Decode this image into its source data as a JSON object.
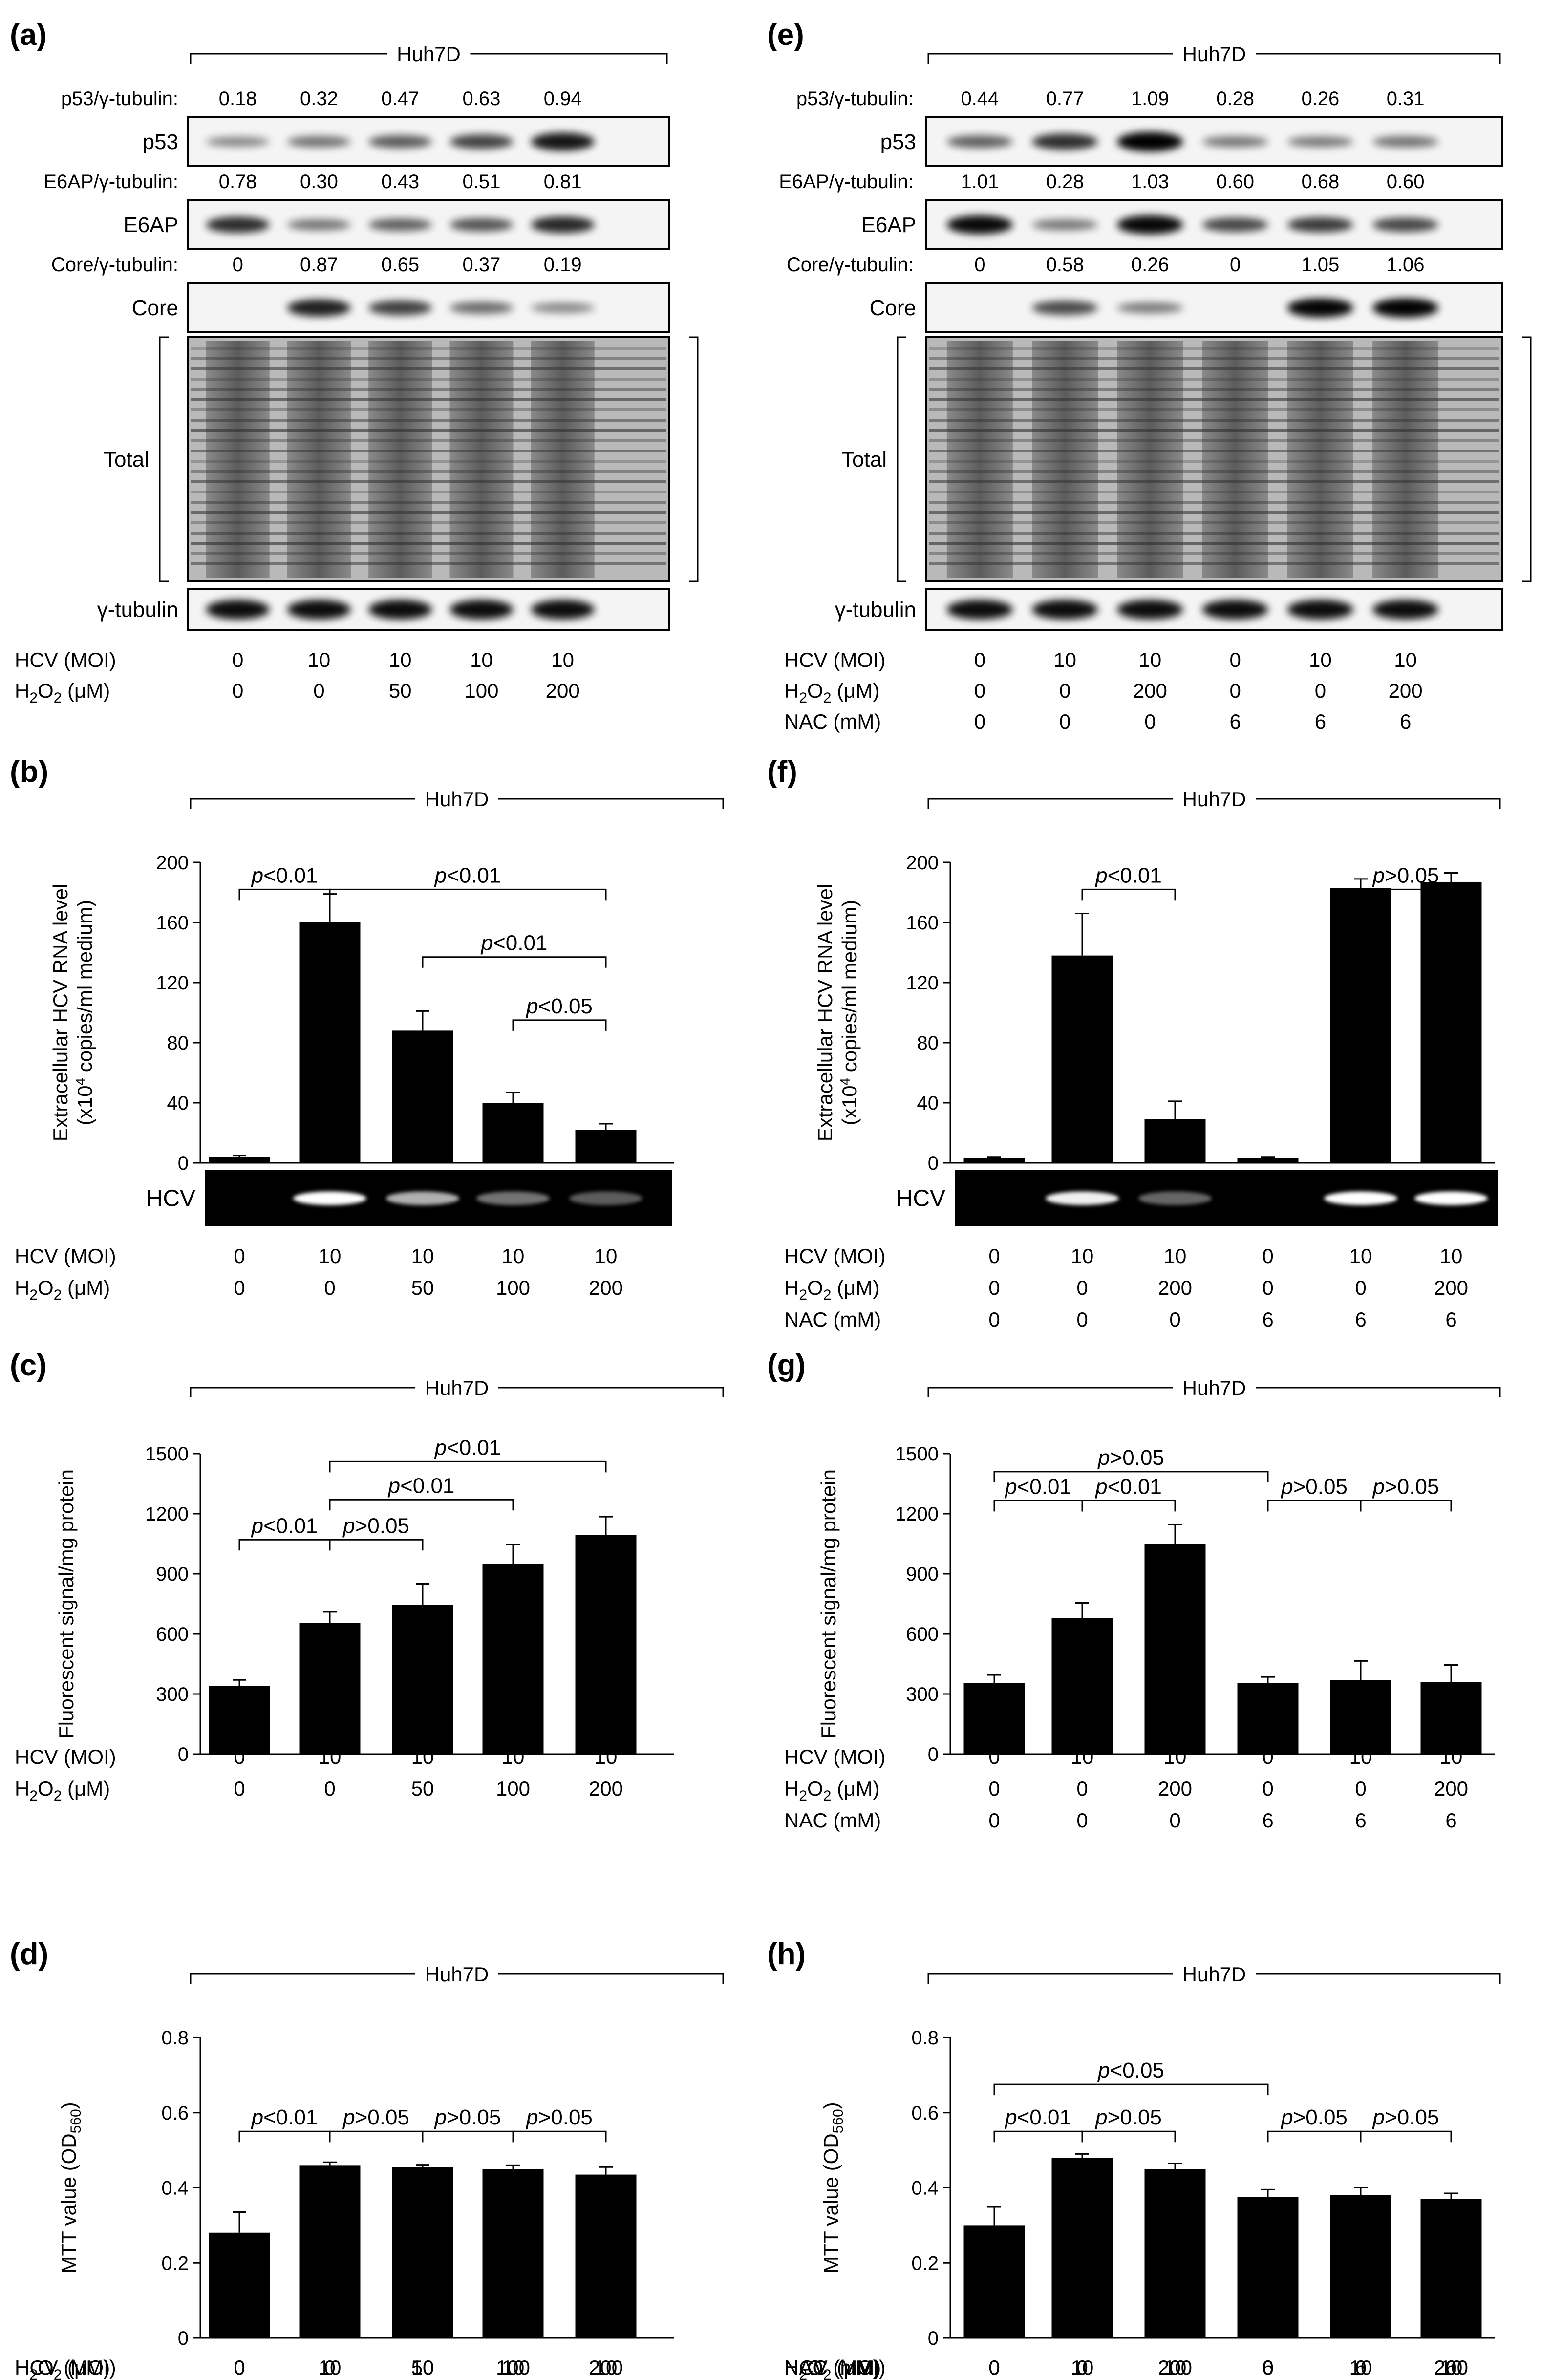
{
  "panels": {
    "a": {
      "label": "(a)",
      "cell_line": "Huh7D",
      "ratio_rows": [
        {
          "label": "p53/γ-tubulin:",
          "values": [
            "0.18",
            "0.32",
            "0.47",
            "0.63",
            "0.94"
          ]
        },
        {
          "label": "E6AP/γ-tubulin:",
          "values": [
            "0.78",
            "0.30",
            "0.43",
            "0.51",
            "0.81"
          ]
        },
        {
          "label": "Core/γ-tubulin:",
          "values": [
            "0",
            "0.87",
            "0.65",
            "0.37",
            "0.19"
          ]
        }
      ],
      "blot_labels": [
        "p53",
        "E6AP",
        "Core",
        "Total",
        "γ-tubulin"
      ],
      "conditions": [
        {
          "label": "HCV (MOI)",
          "values": [
            "0",
            "10",
            "10",
            "10",
            "10"
          ]
        },
        {
          "label": "H2O2 (μM)",
          "values": [
            "0",
            "0",
            "50",
            "100",
            "200"
          ]
        }
      ]
    },
    "e": {
      "label": "(e)",
      "cell_line": "Huh7D",
      "ratio_rows": [
        {
          "label": "p53/γ-tubulin:",
          "values": [
            "0.44",
            "0.77",
            "1.09",
            "0.28",
            "0.26",
            "0.31"
          ]
        },
        {
          "label": "E6AP/γ-tubulin:",
          "values": [
            "1.01",
            "0.28",
            "1.03",
            "0.60",
            "0.68",
            "0.60"
          ]
        },
        {
          "label": "Core/γ-tubulin:",
          "values": [
            "0",
            "0.58",
            "0.26",
            "0",
            "1.05",
            "1.06"
          ]
        }
      ],
      "blot_labels": [
        "p53",
        "E6AP",
        "Core",
        "Total",
        "γ-tubulin"
      ],
      "conditions": [
        {
          "label": "HCV (MOI)",
          "values": [
            "0",
            "10",
            "10",
            "0",
            "10",
            "10"
          ]
        },
        {
          "label": "H2O2 (μM)",
          "values": [
            "0",
            "0",
            "200",
            "0",
            "0",
            "200"
          ]
        },
        {
          "label": "NAC (mM)",
          "values": [
            "0",
            "0",
            "0",
            "6",
            "6",
            "6"
          ]
        }
      ]
    },
    "b": {
      "label": "(b)",
      "cell_line": "Huh7D",
      "gel_label": "HCV",
      "conditions": [
        {
          "label": "HCV (MOI)",
          "values": [
            "0",
            "10",
            "10",
            "10",
            "10"
          ]
        },
        {
          "label": "H2O2 (μM)",
          "values": [
            "0",
            "0",
            "50",
            "100",
            "200"
          ]
        }
      ],
      "sig": [
        "p<0.01",
        "p<0.01",
        "p<0.01",
        "p<0.05"
      ]
    },
    "f": {
      "label": "(f)",
      "cell_line": "Huh7D",
      "gel_label": "HCV",
      "conditions": [
        {
          "label": "HCV (MOI)",
          "values": [
            "0",
            "10",
            "10",
            "0",
            "10",
            "10"
          ]
        },
        {
          "label": "H2O2 (μM)",
          "values": [
            "0",
            "0",
            "200",
            "0",
            "0",
            "200"
          ]
        },
        {
          "label": "NAC (mM)",
          "values": [
            "0",
            "0",
            "0",
            "6",
            "6",
            "6"
          ]
        }
      ],
      "sig": [
        "p<0.01",
        "p>0.05"
      ]
    },
    "c": {
      "label": "(c)",
      "cell_line": "Huh7D",
      "conditions": [
        {
          "label": "HCV (MOI)",
          "values": [
            "0",
            "10",
            "10",
            "10",
            "10"
          ]
        },
        {
          "label": "H2O2 (μM)",
          "values": [
            "0",
            "0",
            "50",
            "100",
            "200"
          ]
        }
      ],
      "sig": [
        "p<0.01",
        "p<0.01",
        "p<0.01",
        "p>0.05"
      ]
    },
    "g": {
      "label": "(g)",
      "cell_line": "Huh7D",
      "conditions": [
        {
          "label": "HCV (MOI)",
          "values": [
            "0",
            "10",
            "10",
            "0",
            "10",
            "10"
          ]
        },
        {
          "label": "H2O2 (μM)",
          "values": [
            "0",
            "0",
            "200",
            "0",
            "0",
            "200"
          ]
        },
        {
          "label": "NAC (mM)",
          "values": [
            "0",
            "0",
            "0",
            "6",
            "6",
            "6"
          ]
        }
      ],
      "sig": [
        "p>0.05",
        "p<0.01",
        "p<0.01",
        "p>0.05",
        "p>0.05"
      ]
    },
    "d": {
      "label": "(d)",
      "cell_line": "Huh7D",
      "conditions": [
        {
          "label": "HCV (MOI)",
          "values": [
            "0",
            "10",
            "10",
            "10",
            "10"
          ]
        },
        {
          "label": "H2O2 (μM)",
          "values": [
            "0",
            "0",
            "50",
            "100",
            "200"
          ]
        }
      ],
      "sig": [
        "p<0.01",
        "p>0.05",
        "p>0.05",
        "p>0.05"
      ]
    },
    "h": {
      "label": "(h)",
      "cell_line": "Huh7D",
      "conditions": [
        {
          "label": "HCV (MOI)",
          "values": [
            "0",
            "10",
            "10",
            "0",
            "10",
            "10"
          ]
        },
        {
          "label": "H2O2 (μM)",
          "values": [
            "0",
            "0",
            "200",
            "0",
            "0",
            "200"
          ]
        },
        {
          "label": "NAC (mM)",
          "values": [
            "0",
            "0",
            "0",
            "6",
            "6",
            "6"
          ]
        }
      ],
      "sig": [
        "p<0.05",
        "p<0.01",
        "p>0.05",
        "p>0.05",
        "p>0.05"
      ]
    }
  },
  "chart_data": [
    {
      "panel": "b",
      "type": "bar",
      "ylabel": "Extracellular HCV RNA level (x10^4 copies/ml medium)",
      "ylim": [
        0,
        200
      ],
      "yticks": [
        0,
        40,
        80,
        120,
        160,
        200
      ],
      "values": [
        4,
        160,
        88,
        40,
        22
      ],
      "errors": [
        1,
        19,
        13,
        7,
        4
      ]
    },
    {
      "panel": "f",
      "type": "bar",
      "ylabel": "Extracellular HCV RNA level (x10^4 copies/ml medium)",
      "ylim": [
        0,
        200
      ],
      "yticks": [
        0,
        40,
        80,
        120,
        160,
        200
      ],
      "values": [
        3,
        138,
        29,
        3,
        183,
        187
      ],
      "errors": [
        1,
        28,
        12,
        1,
        6,
        6
      ]
    },
    {
      "panel": "c",
      "type": "bar",
      "ylabel": "Fluorescent signal/mg protein",
      "ylim": [
        0,
        1500
      ],
      "yticks": [
        0,
        300,
        600,
        900,
        1200,
        1500
      ],
      "values": [
        340,
        655,
        745,
        950,
        1095
      ],
      "errors": [
        30,
        55,
        105,
        95,
        90
      ]
    },
    {
      "panel": "g",
      "type": "bar",
      "ylabel": "Fluorescent signal/mg protein",
      "ylim": [
        0,
        1500
      ],
      "yticks": [
        0,
        300,
        600,
        900,
        1200,
        1500
      ],
      "values": [
        355,
        680,
        1050,
        355,
        370,
        360
      ],
      "errors": [
        40,
        75,
        95,
        30,
        95,
        85
      ]
    },
    {
      "panel": "d",
      "type": "bar",
      "ylabel": "MTT value (OD560)",
      "ylim": [
        0,
        0.8
      ],
      "yticks": [
        0,
        0.2,
        0.4,
        0.6,
        0.8
      ],
      "values": [
        0.28,
        0.46,
        0.455,
        0.45,
        0.435
      ],
      "errors": [
        0.055,
        0.008,
        0.006,
        0.01,
        0.02
      ]
    },
    {
      "panel": "h",
      "type": "bar",
      "ylabel": "MTT value (OD560)",
      "ylim": [
        0,
        0.8
      ],
      "yticks": [
        0,
        0.2,
        0.4,
        0.6,
        0.8
      ],
      "values": [
        0.3,
        0.48,
        0.45,
        0.375,
        0.38,
        0.37
      ],
      "errors": [
        0.05,
        0.01,
        0.015,
        0.02,
        0.02,
        0.015
      ]
    }
  ]
}
